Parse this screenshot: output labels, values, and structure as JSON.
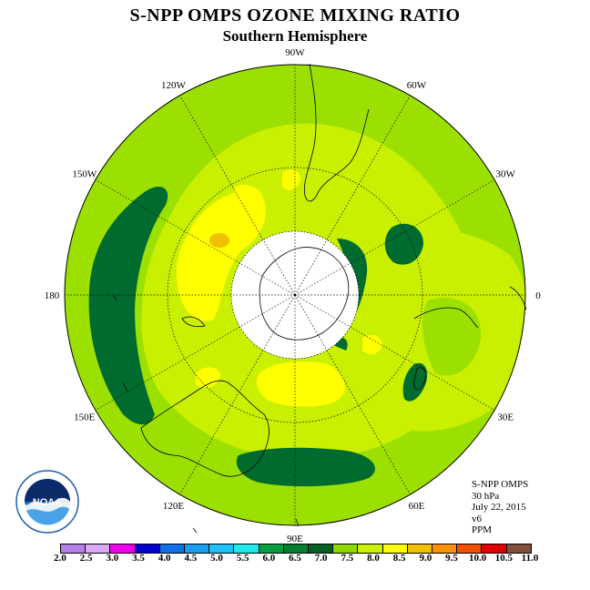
{
  "header": {
    "title": "S-NPP OMPS OZONE MIXING RATIO",
    "subtitle": "Southern Hemisphere"
  },
  "longitude_labels": [
    {
      "text": "90W",
      "lon": -90
    },
    {
      "text": "60W",
      "lon": -60
    },
    {
      "text": "30W",
      "lon": -30
    },
    {
      "text": "0",
      "lon": 0
    },
    {
      "text": "30E",
      "lon": 30
    },
    {
      "text": "60E",
      "lon": 60
    },
    {
      "text": "90E",
      "lon": 90
    },
    {
      "text": "120E",
      "lon": 120
    },
    {
      "text": "150E",
      "lon": 150
    },
    {
      "text": "180",
      "lon": 180
    },
    {
      "text": "150W",
      "lon": -150
    },
    {
      "text": "120W",
      "lon": -120
    }
  ],
  "info": {
    "instrument": "S-NPP OMPS",
    "level": "30 hPa",
    "date": "July 22, 2015",
    "version": "v6",
    "units": "PPM"
  },
  "logo": {
    "text": "NOAA",
    "ring_text": "NATIONAL OCEANIC AND ATMOSPHERIC ADMINISTRATION U.S. DEPARTMENT OF COMMERCE"
  },
  "colorbar": {
    "ticks": [
      "2.0",
      "2.5",
      "3.0",
      "3.5",
      "4.0",
      "4.5",
      "5.0",
      "5.5",
      "6.0",
      "6.5",
      "7.0",
      "7.5",
      "8.0",
      "8.5",
      "9.0",
      "9.5",
      "10.0",
      "10.5",
      "11.0"
    ],
    "colors": [
      "#b57fe8",
      "#d9a8f2",
      "#ee00ee",
      "#0000d0",
      "#1070e8",
      "#18a0f0",
      "#20c0f8",
      "#20e8e8",
      "#00a040",
      "#008030",
      "#006028",
      "#8ed800",
      "#c8f000",
      "#ffff00",
      "#f0c000",
      "#ff9000",
      "#f05000",
      "#e00000",
      "#805038"
    ]
  },
  "palette": {
    "dark_green": "#006b2e",
    "mid_green": "#9be000",
    "light_green": "#c8f000",
    "yellow": "#ffff00",
    "orange": "#f0c000"
  }
}
